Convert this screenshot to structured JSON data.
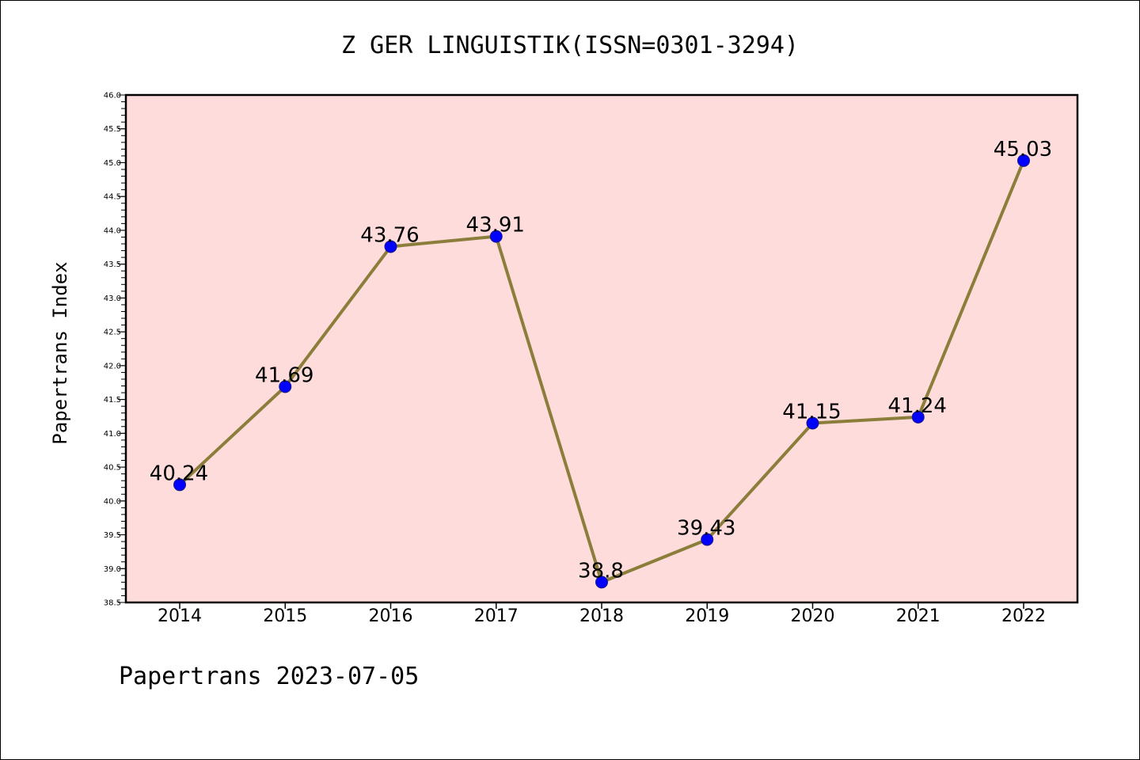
{
  "chart_data": {
    "type": "line",
    "title": "Z GER LINGUISTIK(ISSN=0301-3294)",
    "ylabel": "Papertrans Index",
    "xlabel": "",
    "categories": [
      "2014",
      "2015",
      "2016",
      "2017",
      "2018",
      "2019",
      "2020",
      "2021",
      "2022"
    ],
    "values": [
      40.24,
      41.69,
      43.76,
      43.91,
      38.8,
      39.43,
      41.15,
      41.24,
      45.03
    ],
    "data_labels": [
      "40.24",
      "41.69",
      "43.76",
      "43.91",
      "38.8",
      "39.43",
      "41.15",
      "41.24",
      "45.03"
    ],
    "ylim": [
      38.5,
      46.0
    ],
    "yticks": [
      "38.5",
      "39.0",
      "39.5",
      "40.0",
      "40.5",
      "41.0",
      "41.5",
      "42.0",
      "42.5",
      "43.0",
      "43.5",
      "44.0",
      "44.5",
      "45.0",
      "45.5",
      "46.0"
    ],
    "grid": false,
    "colors": {
      "plot_background": "#ffdcdc",
      "line": "#8b7d3a",
      "marker": "#0000ff"
    }
  },
  "footer": {
    "text": "Papertrans 2023-07-05"
  }
}
